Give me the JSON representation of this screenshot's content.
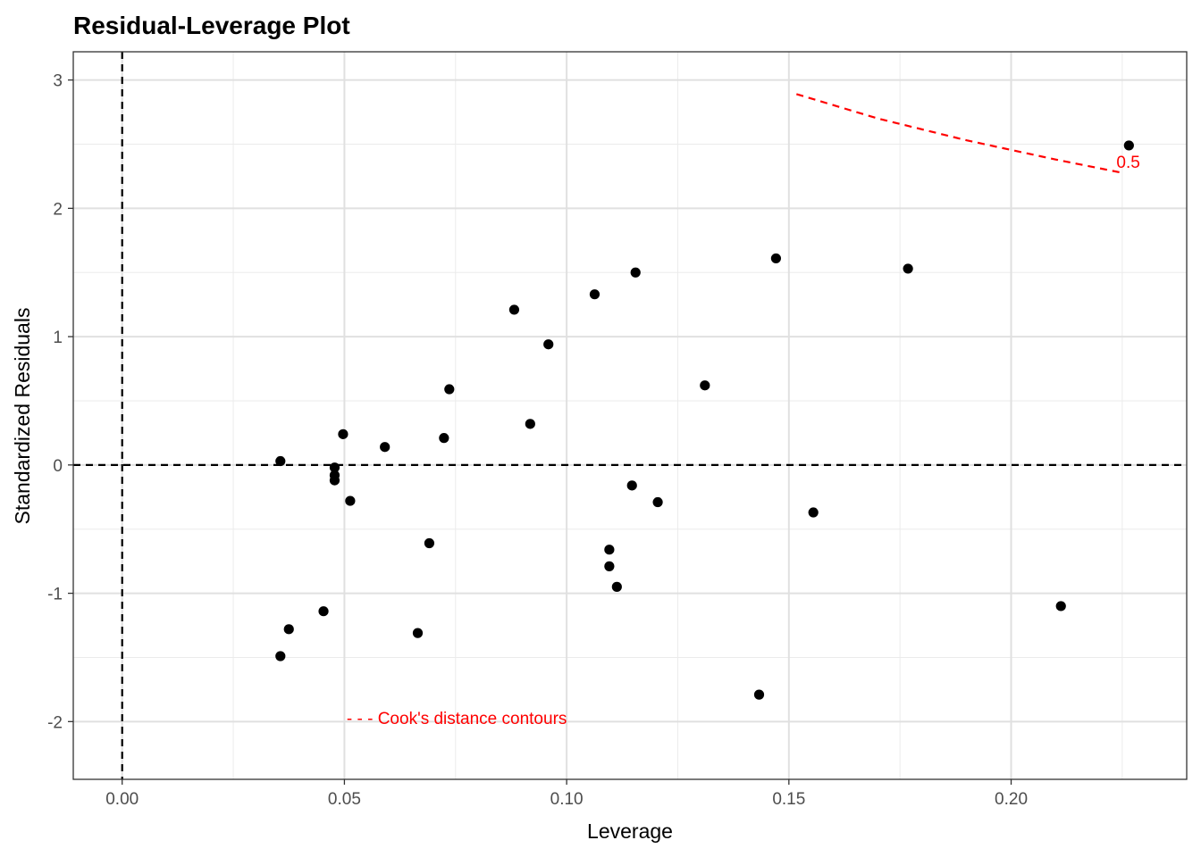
{
  "chart_data": {
    "type": "scatter",
    "title": "Residual-Leverage Plot",
    "xlabel": "Leverage",
    "ylabel": "Standardized Residuals",
    "xlim": [
      -0.011,
      0.2395
    ],
    "ylim": [
      -2.45,
      3.22
    ],
    "x_ticks": [
      0.0,
      0.05,
      0.1,
      0.15,
      0.2
    ],
    "x_tick_labels": [
      "0.00",
      "0.05",
      "0.10",
      "0.15",
      "0.20"
    ],
    "y_ticks": [
      -2,
      -1,
      0,
      1,
      2,
      3
    ],
    "y_tick_labels": [
      "-2",
      "-1",
      "0",
      "1",
      "2",
      "3"
    ],
    "x_minor": [
      -0.0125,
      0.025,
      0.075,
      0.125,
      0.175,
      0.225
    ],
    "y_minor": [
      -2.5,
      -1.5,
      -0.5,
      0.5,
      1.5,
      2.5
    ],
    "grid": true,
    "reference_lines": {
      "vline_x": 0,
      "hline_y": 0
    },
    "points": [
      {
        "x": 0.0356,
        "y": 0.03
      },
      {
        "x": 0.0356,
        "y": -1.49
      },
      {
        "x": 0.0375,
        "y": -1.28
      },
      {
        "x": 0.0453,
        "y": -1.14
      },
      {
        "x": 0.0478,
        "y": -0.02
      },
      {
        "x": 0.0478,
        "y": -0.08
      },
      {
        "x": 0.0478,
        "y": -0.12
      },
      {
        "x": 0.0497,
        "y": 0.24
      },
      {
        "x": 0.0513,
        "y": -0.28
      },
      {
        "x": 0.0591,
        "y": 0.14
      },
      {
        "x": 0.0665,
        "y": -1.31
      },
      {
        "x": 0.0691,
        "y": -0.61
      },
      {
        "x": 0.0724,
        "y": 0.21
      },
      {
        "x": 0.0736,
        "y": 0.59
      },
      {
        "x": 0.0882,
        "y": 1.21
      },
      {
        "x": 0.0918,
        "y": 0.32
      },
      {
        "x": 0.0959,
        "y": 0.94
      },
      {
        "x": 0.1063,
        "y": 1.33
      },
      {
        "x": 0.1096,
        "y": -0.66
      },
      {
        "x": 0.1096,
        "y": -0.79
      },
      {
        "x": 0.1113,
        "y": -0.95
      },
      {
        "x": 0.1147,
        "y": -0.16
      },
      {
        "x": 0.1155,
        "y": 1.5
      },
      {
        "x": 0.1205,
        "y": -0.29
      },
      {
        "x": 0.1311,
        "y": 0.62
      },
      {
        "x": 0.1433,
        "y": -1.79
      },
      {
        "x": 0.1471,
        "y": 1.61
      },
      {
        "x": 0.1555,
        "y": -0.37
      },
      {
        "x": 0.1768,
        "y": 1.53
      },
      {
        "x": 0.2112,
        "y": -1.1
      },
      {
        "x": 0.2265,
        "y": 2.49
      }
    ],
    "cooks_contour": {
      "level_label": "0.5",
      "color": "#ff0000",
      "points": [
        {
          "x": 0.1517,
          "y": 2.89
        },
        {
          "x": 0.17,
          "y": 2.7
        },
        {
          "x": 0.19,
          "y": 2.53
        },
        {
          "x": 0.21,
          "y": 2.38
        },
        {
          "x": 0.2245,
          "y": 2.28
        }
      ]
    },
    "legend_text": "- - - Cook's distance contours",
    "legend_anchor": {
      "x": 0.0505,
      "y": -1.97
    },
    "point_color": "#000000"
  }
}
